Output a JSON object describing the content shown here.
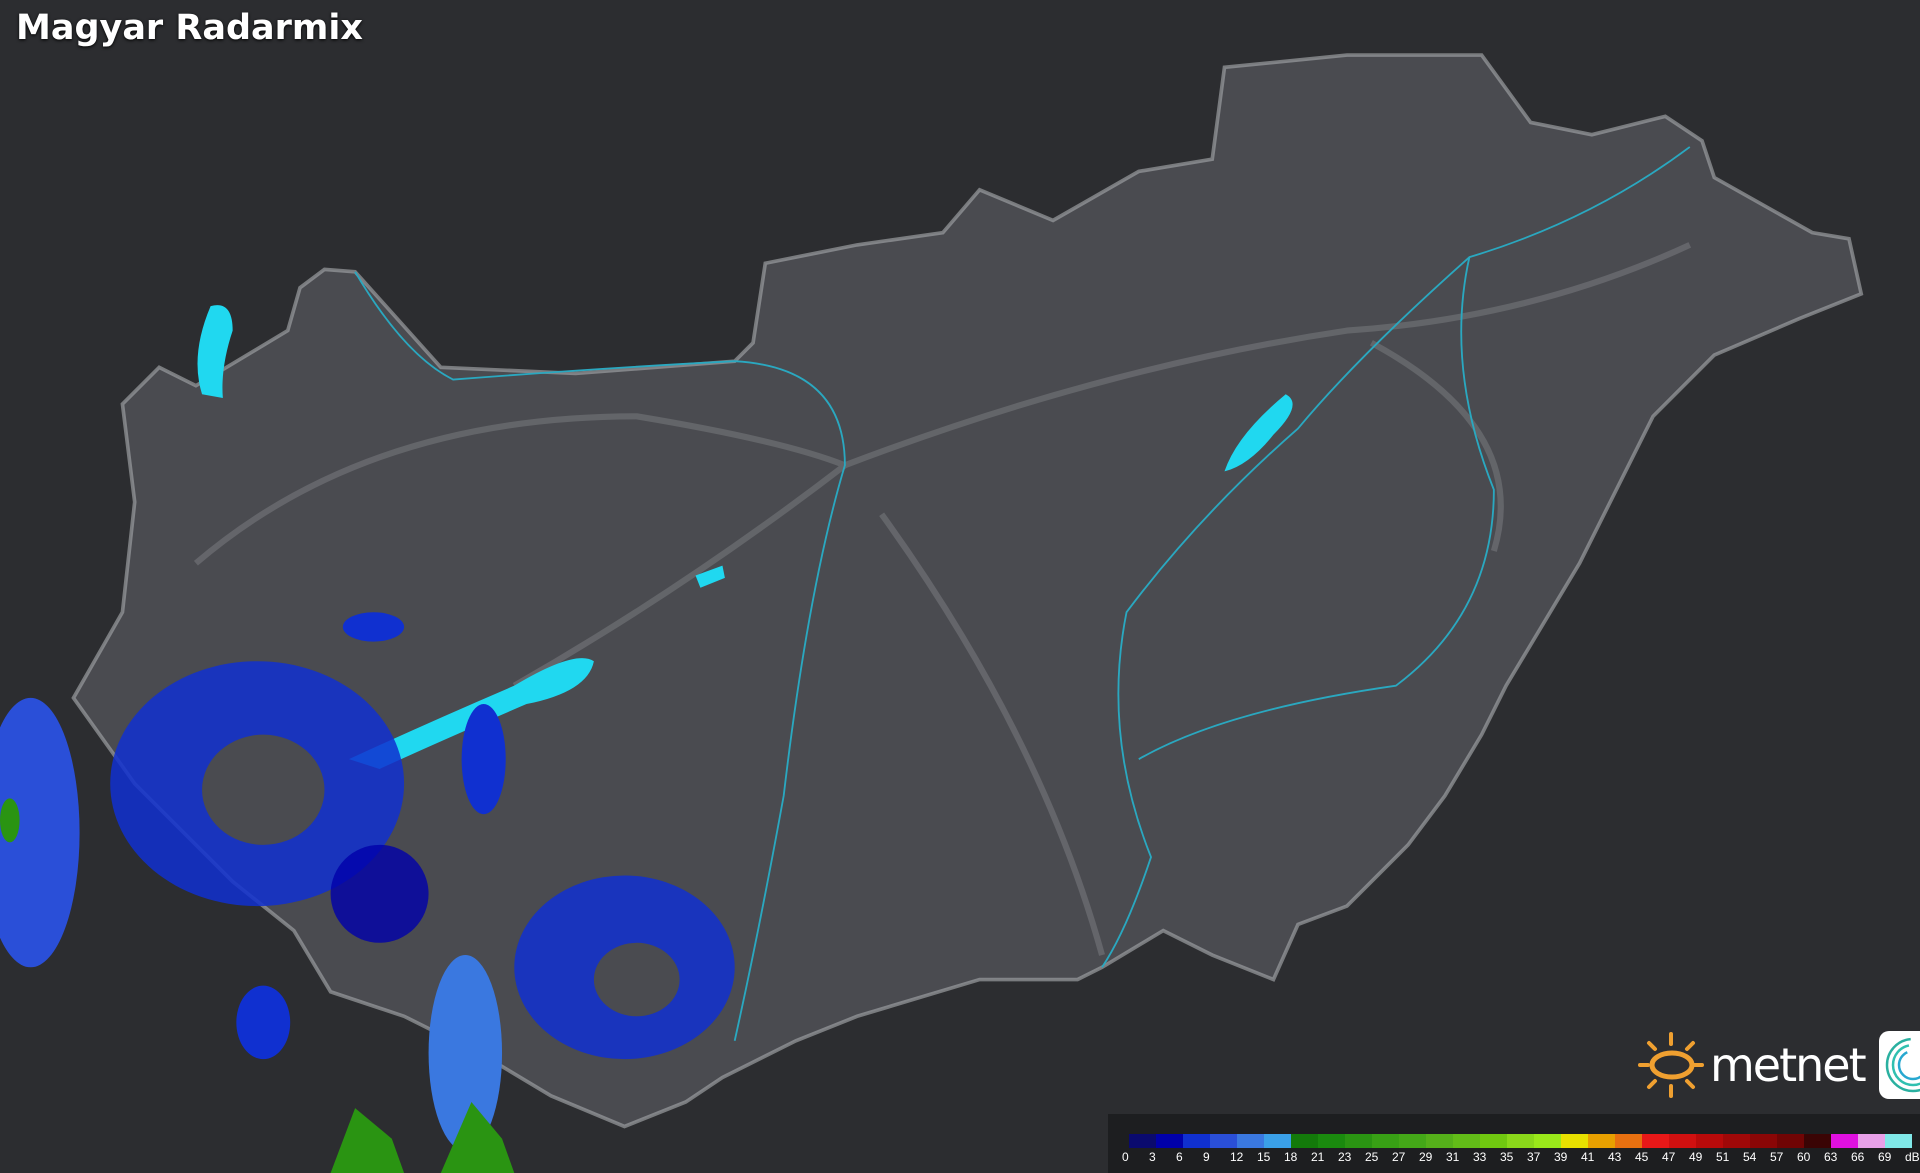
{
  "header": {
    "title": "Magyar Radarmix"
  },
  "legend": {
    "unit": "dBZ",
    "labels": [
      "0",
      "3",
      "6",
      "9",
      "12",
      "15",
      "18",
      "21",
      "23",
      "25",
      "27",
      "29",
      "31",
      "33",
      "35",
      "37",
      "39",
      "41",
      "43",
      "45",
      "47",
      "49",
      "51",
      "54",
      "57",
      "60",
      "63",
      "66",
      "69"
    ],
    "colors": [
      "#0a0a6e",
      "#0000aa",
      "#1030d0",
      "#2a4fd8",
      "#3a78e0",
      "#3aa0e8",
      "#137a0a",
      "#1a8a0e",
      "#2a9412",
      "#38a015",
      "#44a818",
      "#55b01a",
      "#62bc18",
      "#70c810",
      "#8ad81a",
      "#9ae81a",
      "#e8e000",
      "#e8a000",
      "#e87010",
      "#e81818",
      "#d01010",
      "#b80a0a",
      "#a00808",
      "#8a0606",
      "#700404",
      "#3a0404",
      "#e010e0",
      "#e8a0e8",
      "#80e8e8"
    ]
  },
  "logo": {
    "brand": "metnet",
    "sun_color": "#f0a030"
  },
  "colors": {
    "background": "#2c2d30",
    "country": "#4a4b50",
    "border": "#9a9ca0",
    "rivers": "#2aa8c0",
    "lakes": "#20d8f0",
    "radar_low": "#1030d0",
    "radar_mid": "#3a78e0"
  }
}
